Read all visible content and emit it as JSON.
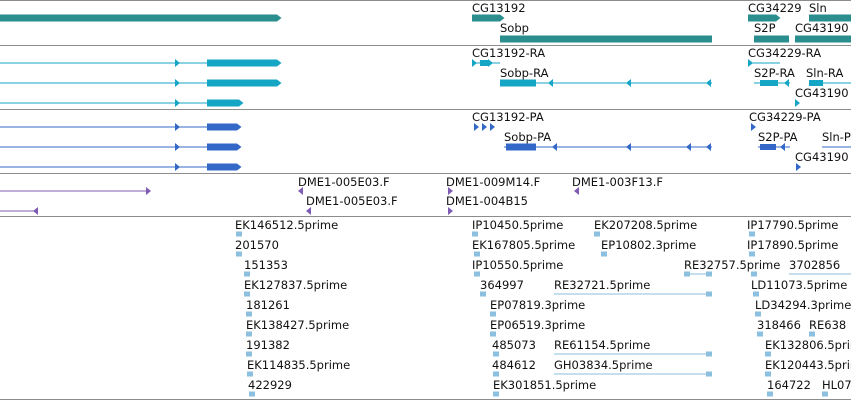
{
  "colors": {
    "gene": "#2b8e8e",
    "mrna": "#15a6c6",
    "cds": "#3368c8",
    "bac": "#7d5cb2",
    "est": "#8dbfdf",
    "separator": "#8c8c8c"
  },
  "tracks": {
    "genes": {
      "labels": {
        "cg13192": "CG13192",
        "sobp": "Sobp",
        "cg34229": "CG34229",
        "sln": "Sln",
        "s2p": "S2P",
        "cg43190": "CG43190"
      }
    },
    "transcripts": {
      "labels": {
        "cg13192_ra": "CG13192-RA",
        "sobp_ra": "Sobp-RA",
        "cg34229_ra": "CG34229-RA",
        "s2p_ra": "S2P-RA",
        "sln_ra": "Sln-RA",
        "cg43190": "CG43190"
      }
    },
    "proteins": {
      "labels": {
        "cg13192_pa": "CG13192-PA",
        "sobp_pa": "Sobp-PA",
        "cg34229_pa": "CG34229-PA",
        "s2p_pa": "S2P-PA",
        "sln_p": "Sln-P",
        "cg43190": "CG43190"
      }
    },
    "bac": {
      "labels": {
        "dme1_005e03_f_a": "DME1-005E03.F",
        "dme1_005e03_f_b": "DME1-005E03.F",
        "dme1_009m14_f": "DME1-009M14.F",
        "dme1_004b15": "DME1-004B15",
        "dme1_003f13_f": "DME1-003F13.F"
      }
    },
    "est": {
      "labels": {
        "ek146512": "EK146512.5prime",
        "n201570": "201570",
        "n151353": "151353",
        "ek127837": "EK127837.5prime",
        "n181261": "181261",
        "ek138427": "EK138427.5prime",
        "n191382": "191382",
        "ek114835": "EK114835.5prime",
        "n422929": "422929",
        "ip10450": "IP10450.5prime",
        "ek167805": "EK167805.5prime",
        "ip10550": "IP10550.5prime",
        "n364997": "364997",
        "ep07819": "EP07819.3prime",
        "ep06519": "EP06519.3prime",
        "n485073": "485073",
        "n484612": "484612",
        "ek30185": "EK301851.5prime",
        "ek207208": "EK207208.5prime",
        "ep10802": "EP10802.3prime",
        "re32757": "RE32757.5prime",
        "re32721": "RE32721.5prime",
        "re61154": "RE61154.5prime",
        "gh03834": "GH03834.5prime",
        "ip17790": "IP17790.5prime",
        "ip17890": "IP17890.5prime",
        "n3702856": "3702856",
        "ld11073": "LD11073.5prime",
        "ld34294": "LD34294.3prime",
        "n318466": "318466",
        "re638": "RE638",
        "ek132806": "EK132806.5prime",
        "ek120443": "EK120443.5prime",
        "n164722": "164722",
        "hl07": "HL07"
      }
    }
  }
}
